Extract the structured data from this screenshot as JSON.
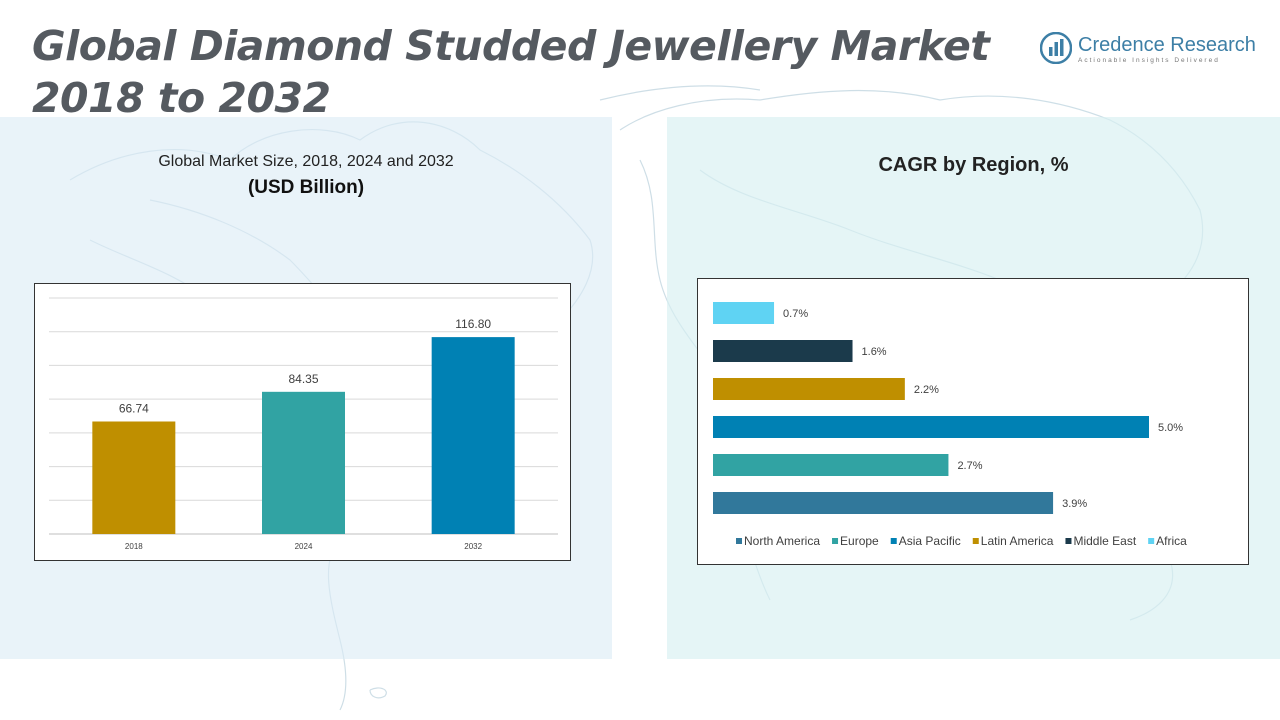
{
  "header": {
    "title_line1": "Global Diamond Studded Jewellery Market",
    "title_line2": "2018 to 2032"
  },
  "brand": {
    "name": "Credence Research",
    "tagline": "Actionable Insights Delivered",
    "color": "#3d7fa6"
  },
  "chart_data": [
    {
      "type": "bar",
      "title": "Global Market Size, 2018, 2024 and 2032",
      "subtitle": "(USD Billion)",
      "categories": [
        "2018",
        "2024",
        "2032"
      ],
      "values": [
        66.74,
        84.35,
        116.8
      ],
      "data_labels": [
        "66.74",
        "84.35",
        "116.80"
      ],
      "colors": [
        "#bf8f00",
        "#31a3a3",
        "#0081b4"
      ],
      "ylim": [
        0,
        140
      ],
      "grid": true,
      "orientation": "vertical"
    },
    {
      "type": "bar",
      "title": "CAGR by Region, %",
      "orientation": "horizontal",
      "categories": [
        "North America",
        "Europe",
        "Asia Pacific",
        "Latin America",
        "Middle East",
        "Africa"
      ],
      "values": [
        3.9,
        2.7,
        5.0,
        2.2,
        1.6,
        0.7
      ],
      "data_labels": [
        "3.9%",
        "2.7%",
        "5.0%",
        "2.2%",
        "1.6%",
        "0.7%"
      ],
      "colors": [
        "#31789b",
        "#31a3a3",
        "#0081b4",
        "#bf8f00",
        "#1b3a4b",
        "#5fd3f3"
      ],
      "xlim": [
        0,
        5
      ],
      "grid": false,
      "legend": "bottom"
    }
  ]
}
